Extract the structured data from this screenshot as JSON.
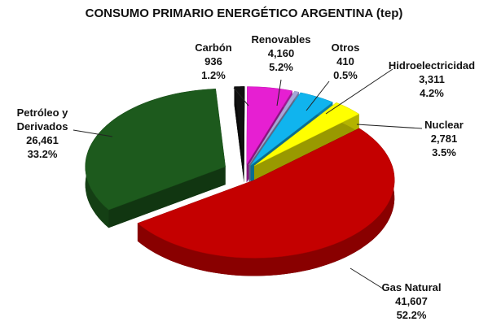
{
  "chart_data": {
    "type": "pie",
    "title": "CONSUMO PRIMARIO ENERGÉTICO ARGENTINA (tep)",
    "categories": [
      "Carbón",
      "Renovables",
      "Otros",
      "Hidroelectricidad",
      "Nuclear",
      "Gas Natural",
      "Petróleo y Derivados"
    ],
    "values": [
      936,
      4160,
      410,
      3311,
      2781,
      41607,
      26461
    ],
    "value_labels": [
      "936",
      "4,160",
      "410",
      "3,311",
      "2,781",
      "41,607",
      "26,461"
    ],
    "percentages": [
      1.2,
      5.2,
      0.5,
      4.2,
      3.5,
      52.2,
      33.2
    ],
    "percentage_labels": [
      "1.2%",
      "5.2%",
      "0.5%",
      "4.2%",
      "3.5%",
      "52.2%",
      "33.2%"
    ],
    "colors": [
      "#111111",
      "#e61fd2",
      "#a4a6d8",
      "#10b4ee",
      "#ffff00",
      "#c40000",
      "#1d5a1d"
    ]
  }
}
